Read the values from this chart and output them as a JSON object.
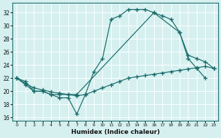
{
  "title": "",
  "xlabel": "Humidex (Indice chaleur)",
  "bg_color": "#d6f0f0",
  "line_color": "#1a6b6b",
  "grid_color": "#ffffff",
  "xlim": [
    -0.5,
    23.5
  ],
  "ylim": [
    15.5,
    33.5
  ],
  "xticks": [
    0,
    1,
    2,
    3,
    4,
    5,
    6,
    7,
    8,
    9,
    10,
    11,
    12,
    13,
    14,
    15,
    16,
    17,
    18,
    19,
    20,
    21,
    22,
    23
  ],
  "yticks": [
    16,
    18,
    20,
    22,
    24,
    26,
    28,
    30,
    32
  ],
  "series1_x": [
    0,
    1,
    2,
    3,
    4,
    5,
    6,
    7,
    8,
    9,
    10,
    11,
    12,
    13,
    14,
    15,
    16,
    17,
    18,
    19,
    20,
    21,
    22
  ],
  "series1_y": [
    22,
    21,
    20,
    20,
    19.5,
    19,
    19,
    16.5,
    19.5,
    23,
    25,
    31,
    31.5,
    32.5,
    32.5,
    32.5,
    32,
    31.5,
    31,
    29,
    25,
    23.5,
    22
  ],
  "series2_x": [
    0,
    1,
    2,
    3,
    4,
    5,
    6,
    7,
    16,
    19,
    20,
    21,
    22,
    23
  ],
  "series2_y": [
    22,
    21.5,
    20,
    20,
    19.5,
    19.5,
    19.5,
    19.5,
    32,
    29,
    25.5,
    25,
    24.5,
    23.5
  ],
  "series3_x": [
    0,
    1,
    2,
    3,
    4,
    5,
    6,
    7,
    8,
    9,
    10,
    11,
    12,
    13,
    14,
    15,
    16,
    17,
    18,
    19,
    20,
    21,
    22,
    23
  ],
  "series3_y": [
    22,
    21.2,
    20.5,
    20.2,
    19.9,
    19.7,
    19.5,
    19.3,
    19.5,
    20,
    20.5,
    21,
    21.5,
    22,
    22.2,
    22.4,
    22.6,
    22.8,
    23,
    23.2,
    23.4,
    23.6,
    23.8,
    23.5
  ],
  "figsize": [
    3.2,
    2.0
  ],
  "dpi": 100
}
